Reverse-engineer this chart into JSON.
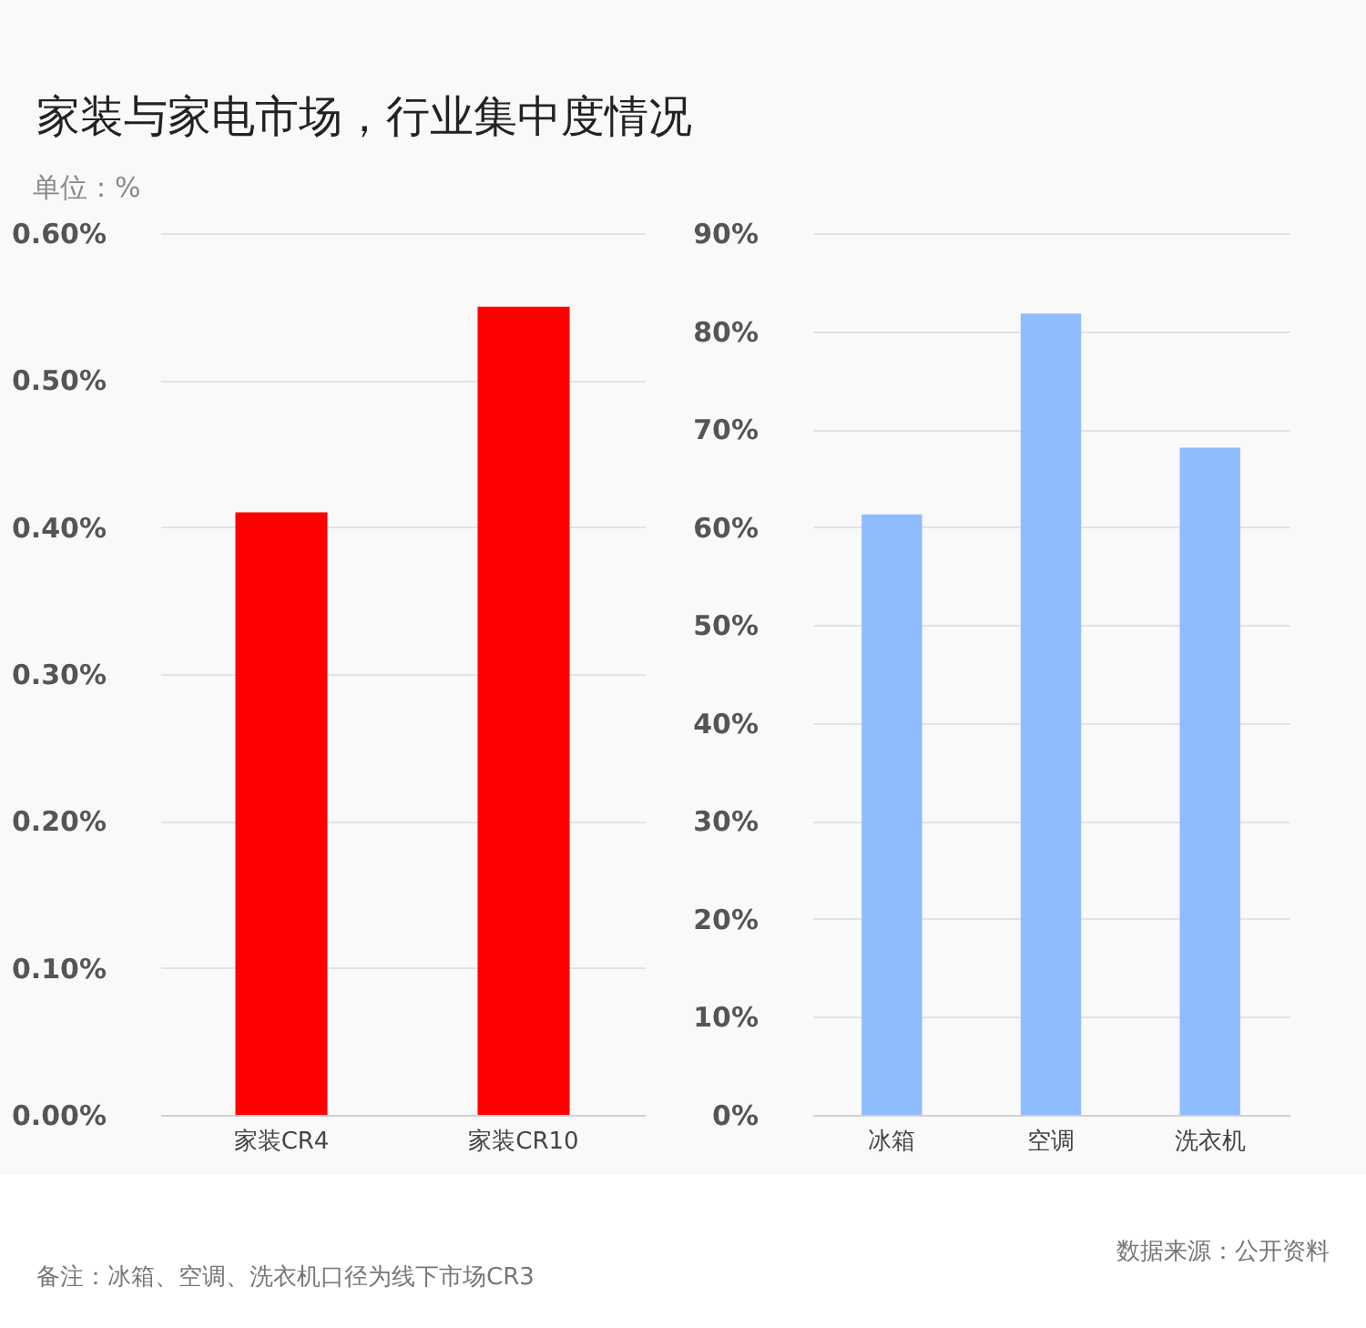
{
  "chart_data": [
    {
      "type": "bar",
      "title": "家装与家电市场，行业集中度情况",
      "ylabel": "单位：%",
      "categories": [
        "家装CR4",
        "家装CR10"
      ],
      "values": [
        0.41,
        0.55
      ],
      "color": "#ff0000",
      "ylim": [
        0,
        0.6
      ],
      "yticks": [
        {
          "value": 0,
          "label": "0.00%"
        },
        {
          "value": 0.1,
          "label": "0.10%"
        },
        {
          "value": 0.2,
          "label": "0.20%"
        },
        {
          "value": 0.3,
          "label": "0.30%"
        },
        {
          "value": 0.4,
          "label": "0.40%"
        },
        {
          "value": 0.5,
          "label": "0.50%"
        },
        {
          "value": 0.6,
          "label": "0.60%"
        }
      ],
      "grid": "y"
    },
    {
      "type": "bar",
      "categories": [
        "冰箱",
        "空调",
        "洗衣机"
      ],
      "values": [
        61.3,
        81.8,
        68.1
      ],
      "color": "#8fbbff",
      "ylim": [
        0,
        90
      ],
      "yticks": [
        {
          "value": 0,
          "label": "0%"
        },
        {
          "value": 10,
          "label": "10%"
        },
        {
          "value": 20,
          "label": "20%"
        },
        {
          "value": 30,
          "label": "30%"
        },
        {
          "value": 40,
          "label": "40%"
        },
        {
          "value": 50,
          "label": "50%"
        },
        {
          "value": 60,
          "label": "60%"
        },
        {
          "value": 70,
          "label": "70%"
        },
        {
          "value": 80,
          "label": "80%"
        },
        {
          "value": 90,
          "label": "90%"
        }
      ],
      "grid": "y",
      "annotations": [
        "备注：冰箱、空调、洗衣机口径为线下市场CR3",
        "数据来源：公开资料"
      ]
    }
  ]
}
